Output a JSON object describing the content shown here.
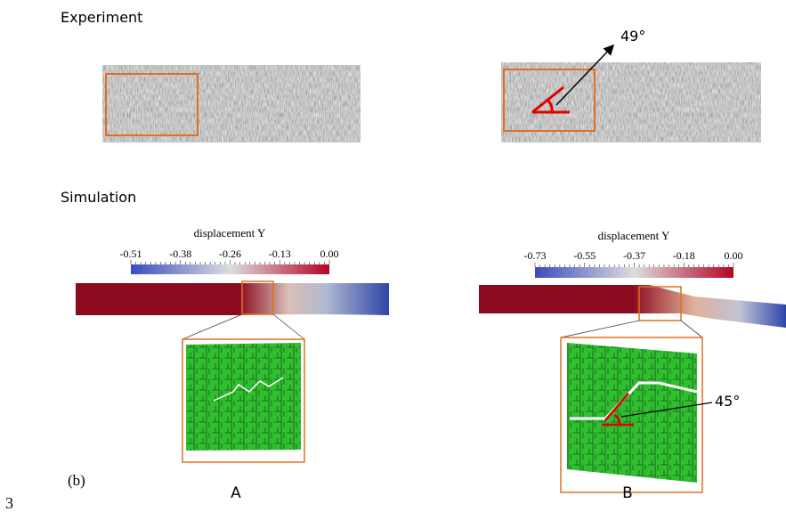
{
  "experiment": {
    "title": "Experiment",
    "angle_label": "49°"
  },
  "simulation": {
    "title": "Simulation",
    "colorbar_a": {
      "label": "displacement Y",
      "ticks": [
        "-0.51",
        "-0.38",
        "-0.26",
        "-0.13",
        "0.00"
      ]
    },
    "colorbar_b": {
      "label": "displacement Y",
      "ticks": [
        "-0.73",
        "-0.55",
        "-0.37",
        "-0.18",
        "0.00"
      ]
    },
    "angle_label": "45°"
  },
  "panel_label": "(b)",
  "inset_a": "A",
  "inset_b": "B",
  "page_number": "3"
}
